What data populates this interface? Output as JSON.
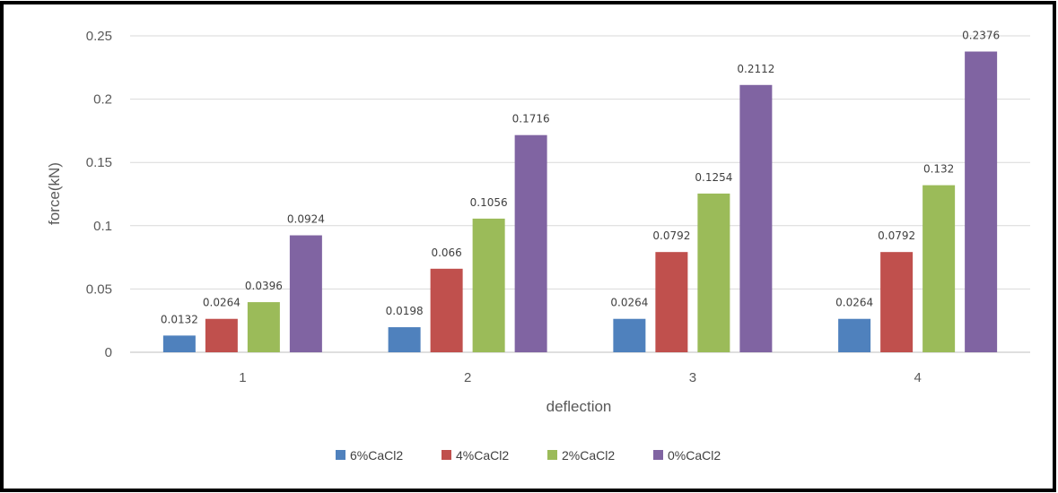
{
  "chart_data": {
    "type": "bar",
    "title": "",
    "xlabel": "deflection",
    "ylabel": "force(kN)",
    "categories": [
      "1",
      "2",
      "3",
      "4"
    ],
    "ylim": [
      0,
      0.25
    ],
    "yticks": [
      0,
      0.05,
      0.1,
      0.15,
      0.2,
      0.25
    ],
    "ytick_labels": [
      "0",
      "0.05",
      "0.1",
      "0.15",
      "0.2",
      "0.25"
    ],
    "grid": true,
    "legend_position": "bottom",
    "series": [
      {
        "name": "6%CaCl2",
        "color": "#4f81bd",
        "values": [
          0.0132,
          0.0198,
          0.0264,
          0.0264
        ],
        "labels": [
          "0.0132",
          "0.0198",
          "0.0264",
          "0.0264"
        ]
      },
      {
        "name": "4%CaCl2",
        "color": "#c0504d",
        "values": [
          0.0264,
          0.066,
          0.0792,
          0.0792
        ],
        "labels": [
          "0.0264",
          "0.066",
          "0.0792",
          "0.0792"
        ]
      },
      {
        "name": "2%CaCl2",
        "color": "#9bbb59",
        "values": [
          0.0396,
          0.1056,
          0.1254,
          0.132
        ],
        "labels": [
          "0.0396",
          "0.1056",
          "0.1254",
          "0.132"
        ]
      },
      {
        "name": "0%CaCl2",
        "color": "#8064a2",
        "values": [
          0.0924,
          0.1716,
          0.2112,
          0.2376
        ],
        "labels": [
          "0.0924",
          "0.1716",
          "0.2112",
          "0.2376"
        ]
      }
    ]
  }
}
